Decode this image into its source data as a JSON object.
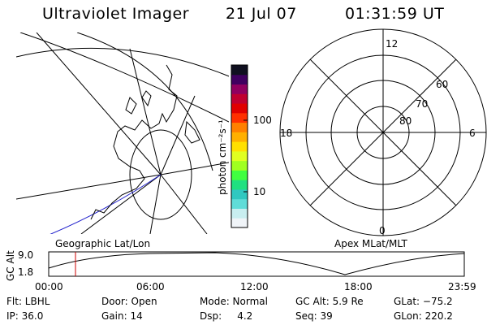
{
  "header": {
    "instrument": "Ultraviolet Imager",
    "date": "21 Jul 07",
    "time": "01:31:59 UT"
  },
  "geo_panel": {
    "label": "Geographic Lat/Lon"
  },
  "apex_panel": {
    "label": "Apex MLat/MLT",
    "mlt_labels": [
      "12",
      "18",
      "6",
      "0"
    ],
    "lat_labels": [
      "60",
      "70",
      "80"
    ]
  },
  "colorbar": {
    "unit_label": "photon cm⁻²s⁻¹",
    "ticks": [
      "100",
      "10"
    ],
    "colors": [
      "#f0f4f8",
      "#c8eef0",
      "#60dcd8",
      "#30c8c0",
      "#20e080",
      "#40ff40",
      "#a0ff20",
      "#e0ff20",
      "#ffe000",
      "#ffb000",
      "#ff8000",
      "#ff3000",
      "#e00000",
      "#c00030",
      "#900060",
      "#400060",
      "#101020"
    ]
  },
  "altitude_plot": {
    "ylabel": "GC Alt",
    "y_ticks": [
      "9.0",
      "1.8"
    ],
    "x_ticks": [
      "00:00",
      "06:00",
      "12:00",
      "18:00",
      "23:59"
    ],
    "current_time_marker_color": "#cc0000"
  },
  "status": {
    "flt": "Flt: LBHL",
    "ip": "IP: 36.0",
    "door": "Door: Open",
    "gain": "Gain: 14",
    "mode": "Mode: Normal",
    "dsp": "Dsp:     4.2",
    "gc_alt": "GC Alt: 5.9 Re",
    "seq": "Seq: 39",
    "glat": "GLat: −75.2",
    "glon": "GLon: 220.2"
  }
}
